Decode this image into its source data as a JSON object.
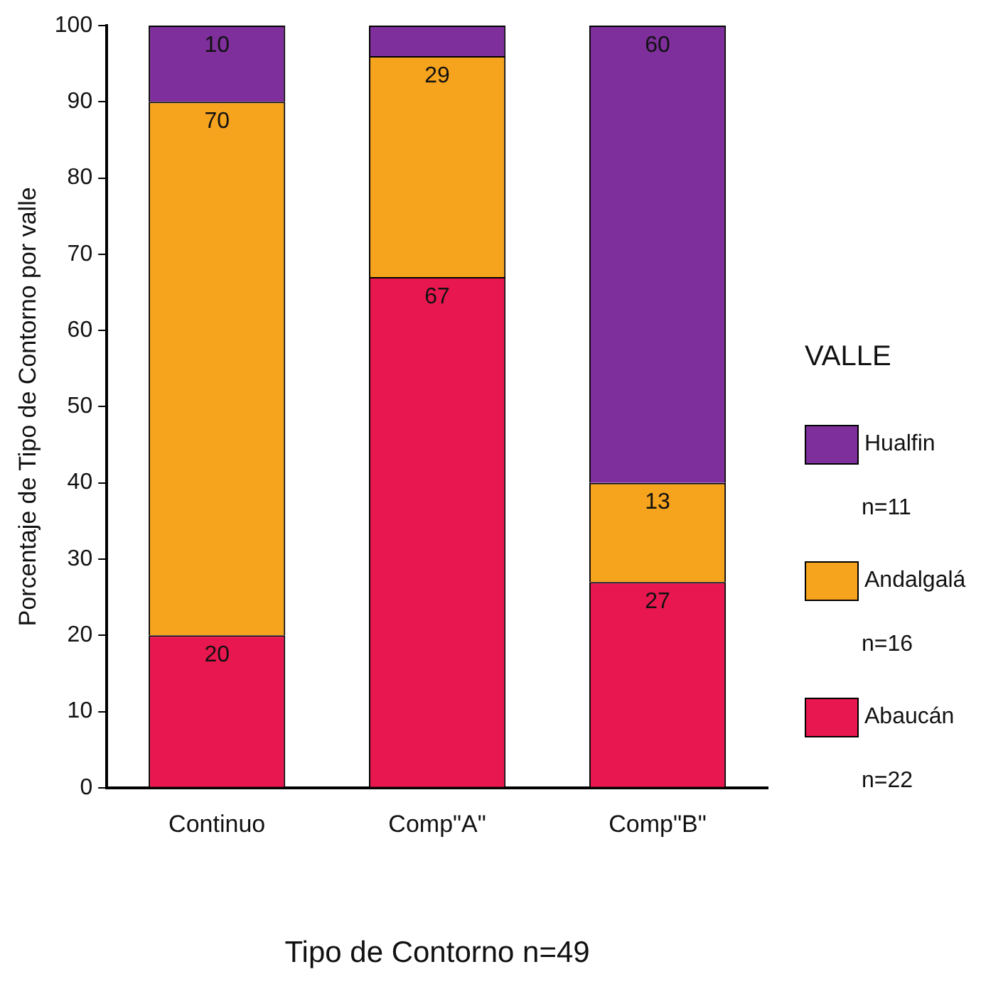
{
  "chart_data": {
    "type": "bar",
    "stacked": true,
    "xlabel": "Tipo de Contorno n=49",
    "ylabel": "Porcentaje de Tipo de Contorno por valle",
    "legend_title": "VALLE",
    "legend": "right",
    "categories": [
      "Continuo",
      "Comp\"A\"",
      "Comp\"B\""
    ],
    "series": [
      {
        "name": "Abaucán",
        "color": "#e8174f",
        "values": [
          20,
          67,
          27
        ],
        "value_labels": [
          "20",
          "67",
          "27"
        ]
      },
      {
        "name": "Andalgalá",
        "color": "#f6a31e",
        "values": [
          70,
          29,
          13
        ],
        "value_labels": [
          "70",
          "29",
          "13"
        ]
      },
      {
        "name": "Hualfin",
        "color": "#7e2f9c",
        "values": [
          10,
          4,
          60
        ],
        "value_labels": [
          "10",
          null,
          "60"
        ]
      }
    ],
    "annotations": [
      "n=22",
      "n=16",
      "n=11"
    ],
    "ylim": [
      0,
      100
    ],
    "yticks": [
      0,
      10,
      20,
      30,
      40,
      50,
      60,
      70,
      80,
      90,
      100
    ]
  }
}
